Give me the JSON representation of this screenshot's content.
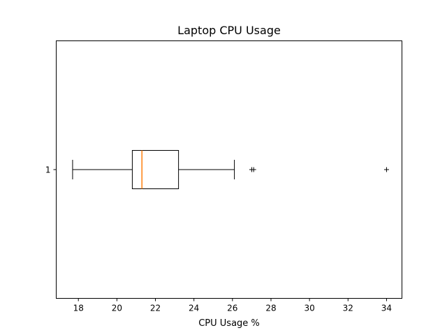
{
  "chart_data": {
    "type": "boxplot",
    "orientation": "horizontal",
    "title": "Laptop CPU Usage",
    "xlabel": "CPU Usage %",
    "ylabel": "",
    "xlim": [
      16.85,
      34.8
    ],
    "xticks": [
      18,
      20,
      22,
      24,
      26,
      28,
      30,
      32,
      34
    ],
    "categories": [
      "1"
    ],
    "series": [
      {
        "whisker_low": 17.7,
        "q1": 20.8,
        "median": 21.3,
        "q3": 23.2,
        "whisker_high": 26.1,
        "outliers": [
          27.0,
          27.1,
          34.0
        ]
      }
    ],
    "grid": false,
    "colors": {
      "box": "#000000",
      "median": "#ff7f0e",
      "axes": "#000000"
    }
  }
}
